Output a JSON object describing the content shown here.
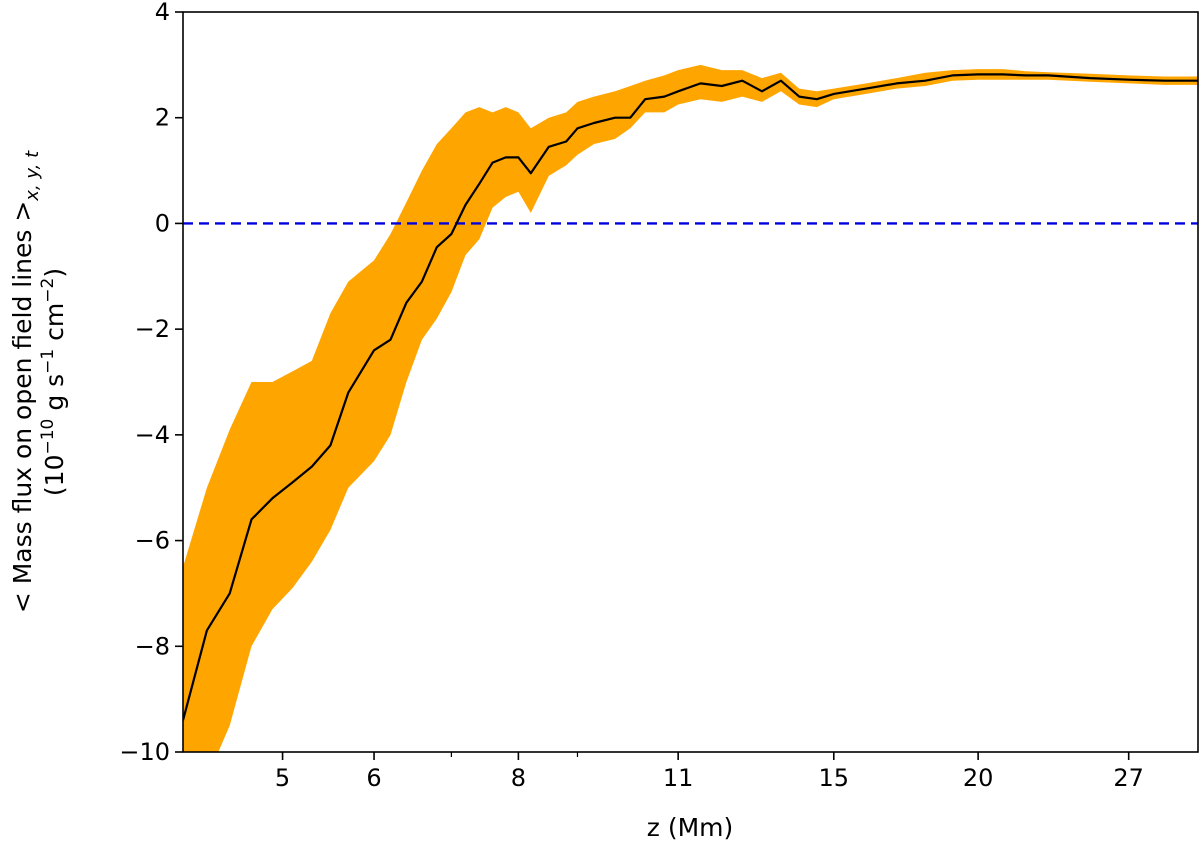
{
  "chart_data": {
    "type": "line",
    "title": "",
    "xlabel": "z (Mm)",
    "ylabel_line1_prefix": "< Mass flux on open field lines >",
    "ylabel_line1_subscript": "x, y, t",
    "ylabel_line2_prefix": "(10",
    "ylabel_line2_exp1": "−10",
    "ylabel_line2_mid": " g s",
    "ylabel_line2_exp2": "−1",
    "ylabel_line2_mid2": " cm",
    "ylabel_line2_exp3": "−2",
    "ylabel_line2_suffix": ")",
    "xscale": "log",
    "xlim": [
      4.1,
      31
    ],
    "ylim": [
      -10,
      4
    ],
    "x_ticks": [
      5,
      6,
      8,
      11,
      15,
      20,
      27
    ],
    "x_tick_labels": [
      "5",
      "6",
      "8",
      "11",
      "15",
      "20",
      "27"
    ],
    "x_minor_ticks": [
      7,
      9
    ],
    "y_ticks": [
      -10,
      -8,
      -6,
      -4,
      -2,
      0,
      2,
      4
    ],
    "y_tick_labels": [
      "−10",
      "−8",
      "−6",
      "−4",
      "−2",
      "0",
      "2",
      "4"
    ],
    "reference_line": {
      "y": 0,
      "style": "dashed",
      "color": "#0000dd"
    },
    "band_color": "#ffa500",
    "line_color": "#000000",
    "series": [
      {
        "name": "mean",
        "x": [
          4.1,
          4.3,
          4.5,
          4.7,
          4.9,
          5.1,
          5.3,
          5.5,
          5.7,
          6.0,
          6.2,
          6.4,
          6.6,
          6.8,
          7.0,
          7.2,
          7.4,
          7.6,
          7.8,
          8.0,
          8.2,
          8.5,
          8.8,
          9.0,
          9.3,
          9.7,
          10.0,
          10.3,
          10.7,
          11.0,
          11.5,
          12.0,
          12.5,
          13.0,
          13.5,
          14.0,
          14.5,
          15.0,
          16.0,
          17.0,
          18.0,
          19.0,
          20.0,
          21.0,
          22.0,
          23.0,
          25.0,
          27.0,
          29.0,
          31.0
        ],
        "mean": [
          -9.4,
          -7.7,
          -7.0,
          -5.6,
          -5.2,
          -4.9,
          -4.6,
          -4.2,
          -3.2,
          -2.4,
          -2.2,
          -1.5,
          -1.1,
          -0.45,
          -0.2,
          0.35,
          0.75,
          1.15,
          1.25,
          1.25,
          0.95,
          1.45,
          1.55,
          1.8,
          1.9,
          2.0,
          2.0,
          2.35,
          2.4,
          2.5,
          2.65,
          2.6,
          2.7,
          2.5,
          2.7,
          2.4,
          2.35,
          2.45,
          2.55,
          2.65,
          2.7,
          2.8,
          2.82,
          2.82,
          2.8,
          2.8,
          2.75,
          2.72,
          2.7,
          2.7
        ],
        "upper": [
          -6.5,
          -5.0,
          -3.9,
          -3.0,
          -3.0,
          -2.8,
          -2.6,
          -1.7,
          -1.1,
          -0.7,
          -0.2,
          0.4,
          1.0,
          1.5,
          1.8,
          2.1,
          2.2,
          2.1,
          2.2,
          2.1,
          1.8,
          2.0,
          2.1,
          2.3,
          2.4,
          2.5,
          2.6,
          2.7,
          2.8,
          2.9,
          3.0,
          2.9,
          2.9,
          2.75,
          2.85,
          2.55,
          2.5,
          2.55,
          2.65,
          2.75,
          2.85,
          2.9,
          2.92,
          2.92,
          2.88,
          2.86,
          2.83,
          2.8,
          2.78,
          2.78
        ],
        "lower": [
          -10.5,
          -10.5,
          -9.5,
          -8.0,
          -7.3,
          -6.9,
          -6.4,
          -5.8,
          -5.0,
          -4.5,
          -4.0,
          -3.0,
          -2.2,
          -1.8,
          -1.3,
          -0.6,
          -0.3,
          0.3,
          0.5,
          0.6,
          0.2,
          0.9,
          1.1,
          1.3,
          1.5,
          1.6,
          1.8,
          2.1,
          2.1,
          2.25,
          2.35,
          2.3,
          2.4,
          2.3,
          2.5,
          2.25,
          2.2,
          2.35,
          2.45,
          2.55,
          2.6,
          2.7,
          2.72,
          2.72,
          2.72,
          2.72,
          2.68,
          2.65,
          2.62,
          2.62
        ]
      }
    ]
  }
}
